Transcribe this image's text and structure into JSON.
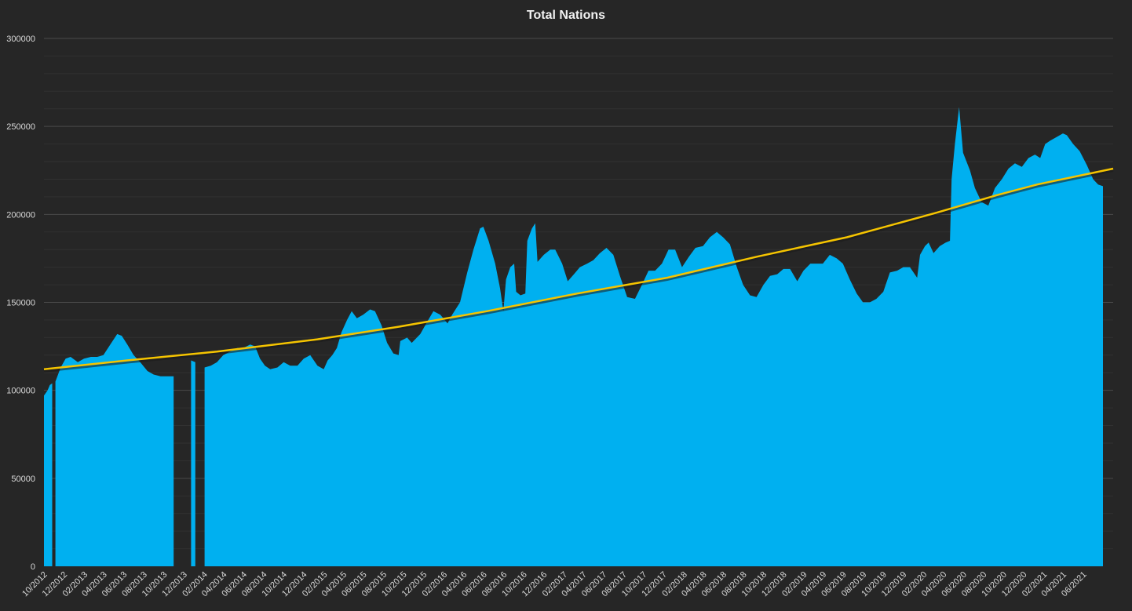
{
  "chart_data": {
    "type": "area",
    "title": "Total Nations",
    "xlabel": "",
    "ylabel": "",
    "ylim": [
      0,
      300000
    ],
    "y_ticks": [
      0,
      50000,
      100000,
      150000,
      200000,
      250000,
      300000
    ],
    "x_range": [
      "2012-09-20",
      "2021-08-20"
    ],
    "x_tick_labels": [
      "10/2012",
      "12/2012",
      "02/2013",
      "04/2013",
      "06/2013",
      "08/2013",
      "10/2013",
      "12/2013",
      "02/2014",
      "04/2014",
      "06/2014",
      "08/2014",
      "10/2014",
      "12/2014",
      "02/2015",
      "04/2015",
      "06/2015",
      "08/2015",
      "10/2015",
      "12/2015",
      "02/2016",
      "04/2016",
      "06/2016",
      "08/2016",
      "10/2016",
      "12/2016",
      "02/2017",
      "04/2017",
      "06/2017",
      "08/2017",
      "10/2017",
      "12/2017",
      "02/2018",
      "04/2018",
      "06/2018",
      "08/2018",
      "10/2018",
      "12/2018",
      "02/2019",
      "04/2019",
      "06/2019",
      "08/2019",
      "10/2019",
      "12/2019",
      "02/2020",
      "04/2020",
      "06/2020",
      "08/2020",
      "10/2020",
      "12/2020",
      "02/2021",
      "04/2021",
      "06/2021"
    ],
    "grid": true,
    "major_gridlines": [
      50000,
      100000,
      150000,
      200000,
      250000,
      300000
    ],
    "minor_gridlines": [
      10000,
      20000,
      30000,
      40000,
      60000,
      70000,
      80000,
      90000,
      110000,
      120000,
      130000,
      140000,
      160000,
      170000,
      180000,
      190000,
      210000,
      220000,
      230000,
      240000,
      260000,
      270000,
      280000,
      290000
    ],
    "series": [
      {
        "kind": "area",
        "color": "#00b0f0",
        "segments": [
          [
            [
              "2012-09-20",
              97000
            ],
            [
              "2012-10-01",
              100000
            ],
            [
              "2012-10-08",
              103000
            ],
            [
              "2012-10-15",
              104000
            ]
          ],
          [
            [
              "2012-10-25",
              105000
            ],
            [
              "2012-11-10",
              113000
            ],
            [
              "2012-11-25",
              118000
            ],
            [
              "2012-12-10",
              119000
            ],
            [
              "2013-01-01",
              116000
            ],
            [
              "2013-01-20",
              118000
            ],
            [
              "2013-02-10",
              119000
            ],
            [
              "2013-03-01",
              119000
            ],
            [
              "2013-03-20",
              120000
            ],
            [
              "2013-04-10",
              126000
            ],
            [
              "2013-05-01",
              132000
            ],
            [
              "2013-05-15",
              131000
            ],
            [
              "2013-06-01",
              126000
            ],
            [
              "2013-06-20",
              120000
            ],
            [
              "2013-07-10",
              116000
            ],
            [
              "2013-08-01",
              111000
            ],
            [
              "2013-08-20",
              109000
            ],
            [
              "2013-09-10",
              108000
            ],
            [
              "2013-10-01",
              108000
            ],
            [
              "2013-10-20",
              108000
            ]
          ],
          [
            [
              "2013-12-12",
              117000
            ],
            [
              "2013-12-25",
              116000
            ]
          ],
          [
            [
              "2014-01-22",
              113000
            ],
            [
              "2014-02-10",
              114000
            ],
            [
              "2014-03-01",
              116000
            ],
            [
              "2014-03-20",
              120000
            ],
            [
              "2014-04-10",
              122000
            ],
            [
              "2014-05-01",
              124000
            ],
            [
              "2014-05-20",
              124000
            ],
            [
              "2014-06-10",
              126000
            ],
            [
              "2014-06-25",
              125000
            ],
            [
              "2014-07-10",
              118000
            ],
            [
              "2014-07-25",
              114000
            ],
            [
              "2014-08-10",
              112000
            ],
            [
              "2014-09-01",
              113000
            ],
            [
              "2014-09-20",
              116000
            ],
            [
              "2014-10-10",
              114000
            ],
            [
              "2014-11-01",
              114000
            ],
            [
              "2014-11-20",
              118000
            ],
            [
              "2014-12-10",
              120000
            ],
            [
              "2015-01-01",
              114000
            ],
            [
              "2015-01-20",
              112000
            ],
            [
              "2015-02-01",
              117000
            ],
            [
              "2015-02-15",
              120000
            ],
            [
              "2015-03-01",
              124000
            ],
            [
              "2015-03-15",
              133000
            ],
            [
              "2015-04-01",
              140000
            ],
            [
              "2015-04-15",
              145000
            ],
            [
              "2015-05-01",
              141000
            ],
            [
              "2015-05-20",
              143000
            ],
            [
              "2015-06-10",
              146000
            ],
            [
              "2015-06-25",
              145000
            ],
            [
              "2015-07-15",
              137000
            ],
            [
              "2015-08-01",
              127000
            ],
            [
              "2015-08-20",
              121000
            ],
            [
              "2015-09-05",
              120000
            ],
            [
              "2015-09-10",
              128000
            ],
            [
              "2015-10-01",
              130000
            ],
            [
              "2015-10-15",
              127000
            ],
            [
              "2015-11-10",
              132000
            ],
            [
              "2015-12-01",
              139000
            ],
            [
              "2015-12-20",
              145000
            ],
            [
              "2016-01-10",
              143000
            ],
            [
              "2016-02-01",
              138000
            ],
            [
              "2016-02-15",
              143000
            ],
            [
              "2016-03-10",
              150000
            ],
            [
              "2016-04-01",
              167000
            ],
            [
              "2016-04-20",
              180000
            ],
            [
              "2016-05-10",
              192000
            ],
            [
              "2016-05-20",
              193000
            ],
            [
              "2016-06-05",
              185000
            ],
            [
              "2016-06-25",
              172000
            ],
            [
              "2016-07-10",
              158000
            ],
            [
              "2016-07-20",
              145000
            ],
            [
              "2016-07-28",
              163000
            ],
            [
              "2016-08-10",
              170000
            ],
            [
              "2016-08-22",
              172000
            ],
            [
              "2016-08-28",
              156000
            ],
            [
              "2016-09-10",
              154000
            ],
            [
              "2016-09-25",
              155000
            ],
            [
              "2016-10-01",
              185000
            ],
            [
              "2016-10-15",
              192000
            ],
            [
              "2016-10-25",
              195000
            ],
            [
              "2016-11-01",
              173000
            ],
            [
              "2016-11-20",
              177000
            ],
            [
              "2016-12-10",
              180000
            ],
            [
              "2016-12-25",
              180000
            ],
            [
              "2017-01-15",
              172000
            ],
            [
              "2017-02-01",
              162000
            ],
            [
              "2017-02-20",
              166000
            ],
            [
              "2017-03-10",
              170000
            ],
            [
              "2017-04-01",
              172000
            ],
            [
              "2017-04-20",
              174000
            ],
            [
              "2017-05-10",
              178000
            ],
            [
              "2017-05-30",
              181000
            ],
            [
              "2017-06-20",
              177000
            ],
            [
              "2017-07-10",
              165000
            ],
            [
              "2017-08-01",
              153000
            ],
            [
              "2017-08-25",
              152000
            ],
            [
              "2017-09-15",
              160000
            ],
            [
              "2017-10-05",
              168000
            ],
            [
              "2017-10-25",
              168000
            ],
            [
              "2017-11-15",
              172000
            ],
            [
              "2017-12-05",
              180000
            ],
            [
              "2017-12-25",
              180000
            ],
            [
              "2018-01-15",
              170000
            ],
            [
              "2018-02-05",
              176000
            ],
            [
              "2018-02-25",
              181000
            ],
            [
              "2018-03-20",
              182000
            ],
            [
              "2018-04-10",
              187000
            ],
            [
              "2018-05-01",
              190000
            ],
            [
              "2018-05-20",
              187000
            ],
            [
              "2018-06-10",
              183000
            ],
            [
              "2018-07-01",
              170000
            ],
            [
              "2018-07-20",
              160000
            ],
            [
              "2018-08-10",
              154000
            ],
            [
              "2018-08-30",
              153000
            ],
            [
              "2018-09-20",
              160000
            ],
            [
              "2018-10-10",
              165000
            ],
            [
              "2018-11-01",
              166000
            ],
            [
              "2018-11-20",
              169000
            ],
            [
              "2018-12-10",
              169000
            ],
            [
              "2019-01-01",
              162000
            ],
            [
              "2019-01-20",
              168000
            ],
            [
              "2019-02-10",
              172000
            ],
            [
              "2019-03-01",
              172000
            ],
            [
              "2019-03-20",
              172000
            ],
            [
              "2019-04-10",
              177000
            ],
            [
              "2019-05-01",
              175000
            ],
            [
              "2019-05-20",
              172000
            ],
            [
              "2019-06-10",
              163000
            ],
            [
              "2019-07-01",
              155000
            ],
            [
              "2019-07-20",
              150000
            ],
            [
              "2019-08-10",
              150000
            ],
            [
              "2019-08-30",
              152000
            ],
            [
              "2019-09-20",
              156000
            ],
            [
              "2019-10-10",
              167000
            ],
            [
              "2019-11-01",
              168000
            ],
            [
              "2019-11-20",
              170000
            ],
            [
              "2019-12-10",
              170000
            ],
            [
              "2020-01-01",
              164000
            ],
            [
              "2020-01-10",
              177000
            ],
            [
              "2020-01-25",
              182000
            ],
            [
              "2020-02-05",
              184000
            ],
            [
              "2020-02-20",
              178000
            ],
            [
              "2020-03-10",
              182000
            ],
            [
              "2020-03-28",
              184000
            ],
            [
              "2020-04-10",
              185000
            ],
            [
              "2020-04-15",
              220000
            ],
            [
              "2020-04-25",
              240000
            ],
            [
              "2020-05-08",
              261000
            ],
            [
              "2020-05-20",
              235000
            ],
            [
              "2020-06-10",
              225000
            ],
            [
              "2020-06-25",
              215000
            ],
            [
              "2020-07-15",
              207000
            ],
            [
              "2020-08-05",
              205000
            ],
            [
              "2020-08-25",
              215000
            ],
            [
              "2020-09-15",
              220000
            ],
            [
              "2020-10-05",
              226000
            ],
            [
              "2020-10-25",
              229000
            ],
            [
              "2020-11-15",
              227000
            ],
            [
              "2020-12-05",
              232000
            ],
            [
              "2020-12-25",
              234000
            ],
            [
              "2021-01-10",
              232000
            ],
            [
              "2021-01-25",
              240000
            ],
            [
              "2021-02-10",
              242000
            ],
            [
              "2021-03-01",
              244000
            ],
            [
              "2021-03-20",
              246000
            ],
            [
              "2021-04-01",
              245000
            ],
            [
              "2021-04-20",
              240000
            ],
            [
              "2021-05-10",
              236000
            ],
            [
              "2021-06-01",
              228000
            ],
            [
              "2021-06-20",
              220000
            ],
            [
              "2021-07-05",
              217000
            ],
            [
              "2021-07-20",
              216000
            ]
          ]
        ]
      },
      {
        "kind": "trendline",
        "color": "#f5c400",
        "points": [
          [
            "2012-09-20",
            112000
          ],
          [
            "2013-06-01",
            117000
          ],
          [
            "2014-03-01",
            122000
          ],
          [
            "2015-01-01",
            129000
          ],
          [
            "2015-09-01",
            136000
          ],
          [
            "2016-06-01",
            145000
          ],
          [
            "2017-03-01",
            155000
          ],
          [
            "2017-12-01",
            164000
          ],
          [
            "2018-09-01",
            176000
          ],
          [
            "2019-06-01",
            187000
          ],
          [
            "2020-03-01",
            201000
          ],
          [
            "2020-09-01",
            211000
          ],
          [
            "2021-01-01",
            217000
          ],
          [
            "2021-08-20",
            226000
          ]
        ]
      }
    ]
  }
}
